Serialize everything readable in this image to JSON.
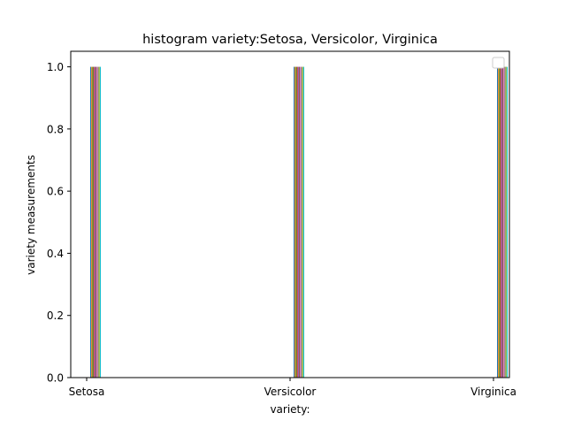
{
  "chart_data": {
    "type": "bar",
    "title": "histogram variety:Setosa, Versicolor, Virginica",
    "xlabel": "variety:",
    "ylabel": "variety measurements",
    "categories": [
      "Setosa",
      "Versicolor",
      "Virginica"
    ],
    "ylim": [
      0,
      1.05
    ],
    "yticks": [
      "0.0",
      "0.2",
      "0.4",
      "0.6",
      "0.8",
      "1.0"
    ],
    "grid": false,
    "legend": "top-right (empty)",
    "series": [
      {
        "color": "#1f77b4",
        "values": [
          1,
          1,
          1
        ]
      },
      {
        "color": "#ff7f0e",
        "values": [
          1,
          1,
          1
        ]
      },
      {
        "color": "#2ca02c",
        "values": [
          1,
          1,
          1
        ]
      },
      {
        "color": "#d62728",
        "values": [
          1,
          1,
          1
        ]
      },
      {
        "color": "#9467bd",
        "values": [
          1,
          1,
          1
        ]
      },
      {
        "color": "#8c564b",
        "values": [
          1,
          1,
          1
        ]
      },
      {
        "color": "#e377c2",
        "values": [
          1,
          1,
          1
        ]
      },
      {
        "color": "#7f7f7f",
        "values": [
          1,
          1,
          1
        ]
      },
      {
        "color": "#bcbd22",
        "values": [
          1,
          1,
          1
        ]
      },
      {
        "color": "#17becf",
        "values": [
          1,
          1,
          1
        ]
      }
    ]
  }
}
